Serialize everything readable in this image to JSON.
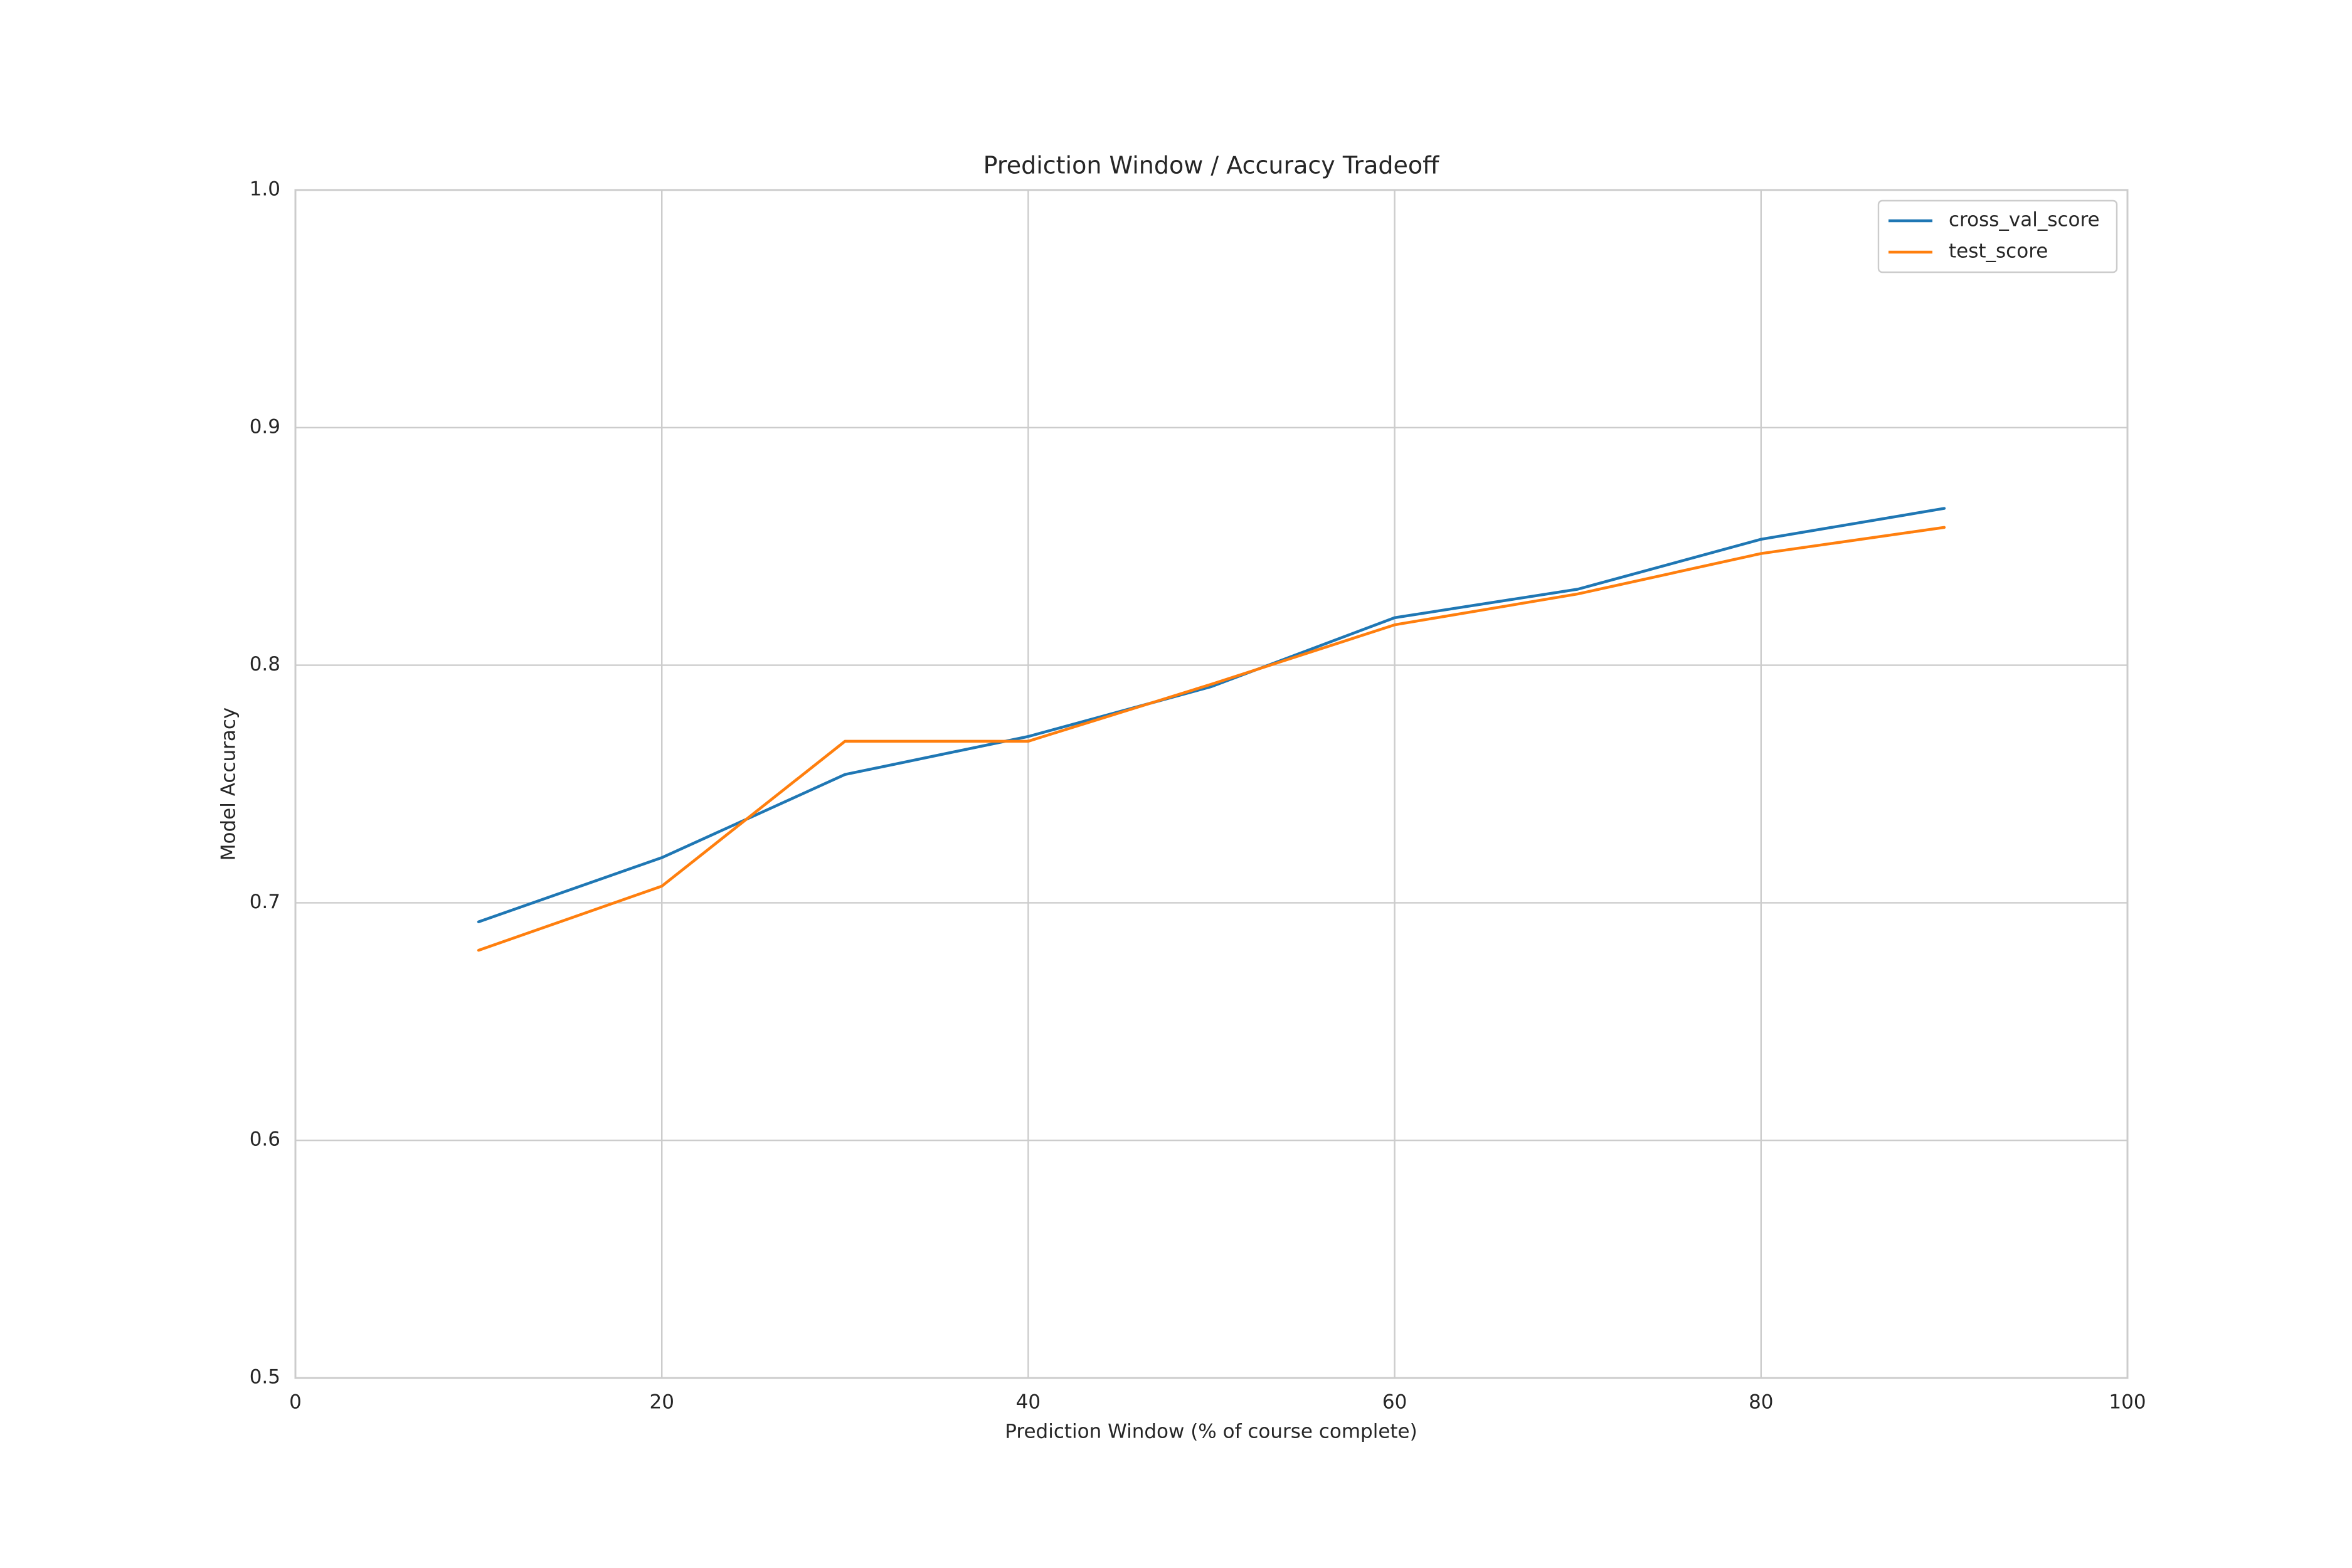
{
  "chart_data": {
    "type": "line",
    "title": "Prediction Window / Accuracy Tradeoff",
    "x_label": "Prediction Window (% of course complete)",
    "y_label": "Model Accuracy",
    "x": [
      10,
      20,
      30,
      40,
      50,
      60,
      70,
      80,
      90
    ],
    "series": [
      {
        "name": "cross_val_score",
        "color": "#1f77b4",
        "values": [
          0.692,
          0.719,
          0.754,
          0.77,
          0.791,
          0.82,
          0.832,
          0.853,
          0.866
        ]
      },
      {
        "name": "test_score",
        "color": "#ff7f0e",
        "values": [
          0.68,
          0.707,
          0.768,
          0.768,
          0.792,
          0.817,
          0.83,
          0.847,
          0.858
        ]
      }
    ],
    "xlim": [
      0,
      100
    ],
    "xticks": [
      0,
      20,
      40,
      60,
      80,
      100
    ],
    "ylim": [
      0.5,
      1.0
    ],
    "yticks": [
      {
        "value": 0.5,
        "label": "0.5"
      },
      0.6,
      0.7,
      0.8,
      0.9,
      {
        "value": 1.0,
        "label": "1.0"
      }
    ],
    "grid": true,
    "legend": "upper right"
  }
}
